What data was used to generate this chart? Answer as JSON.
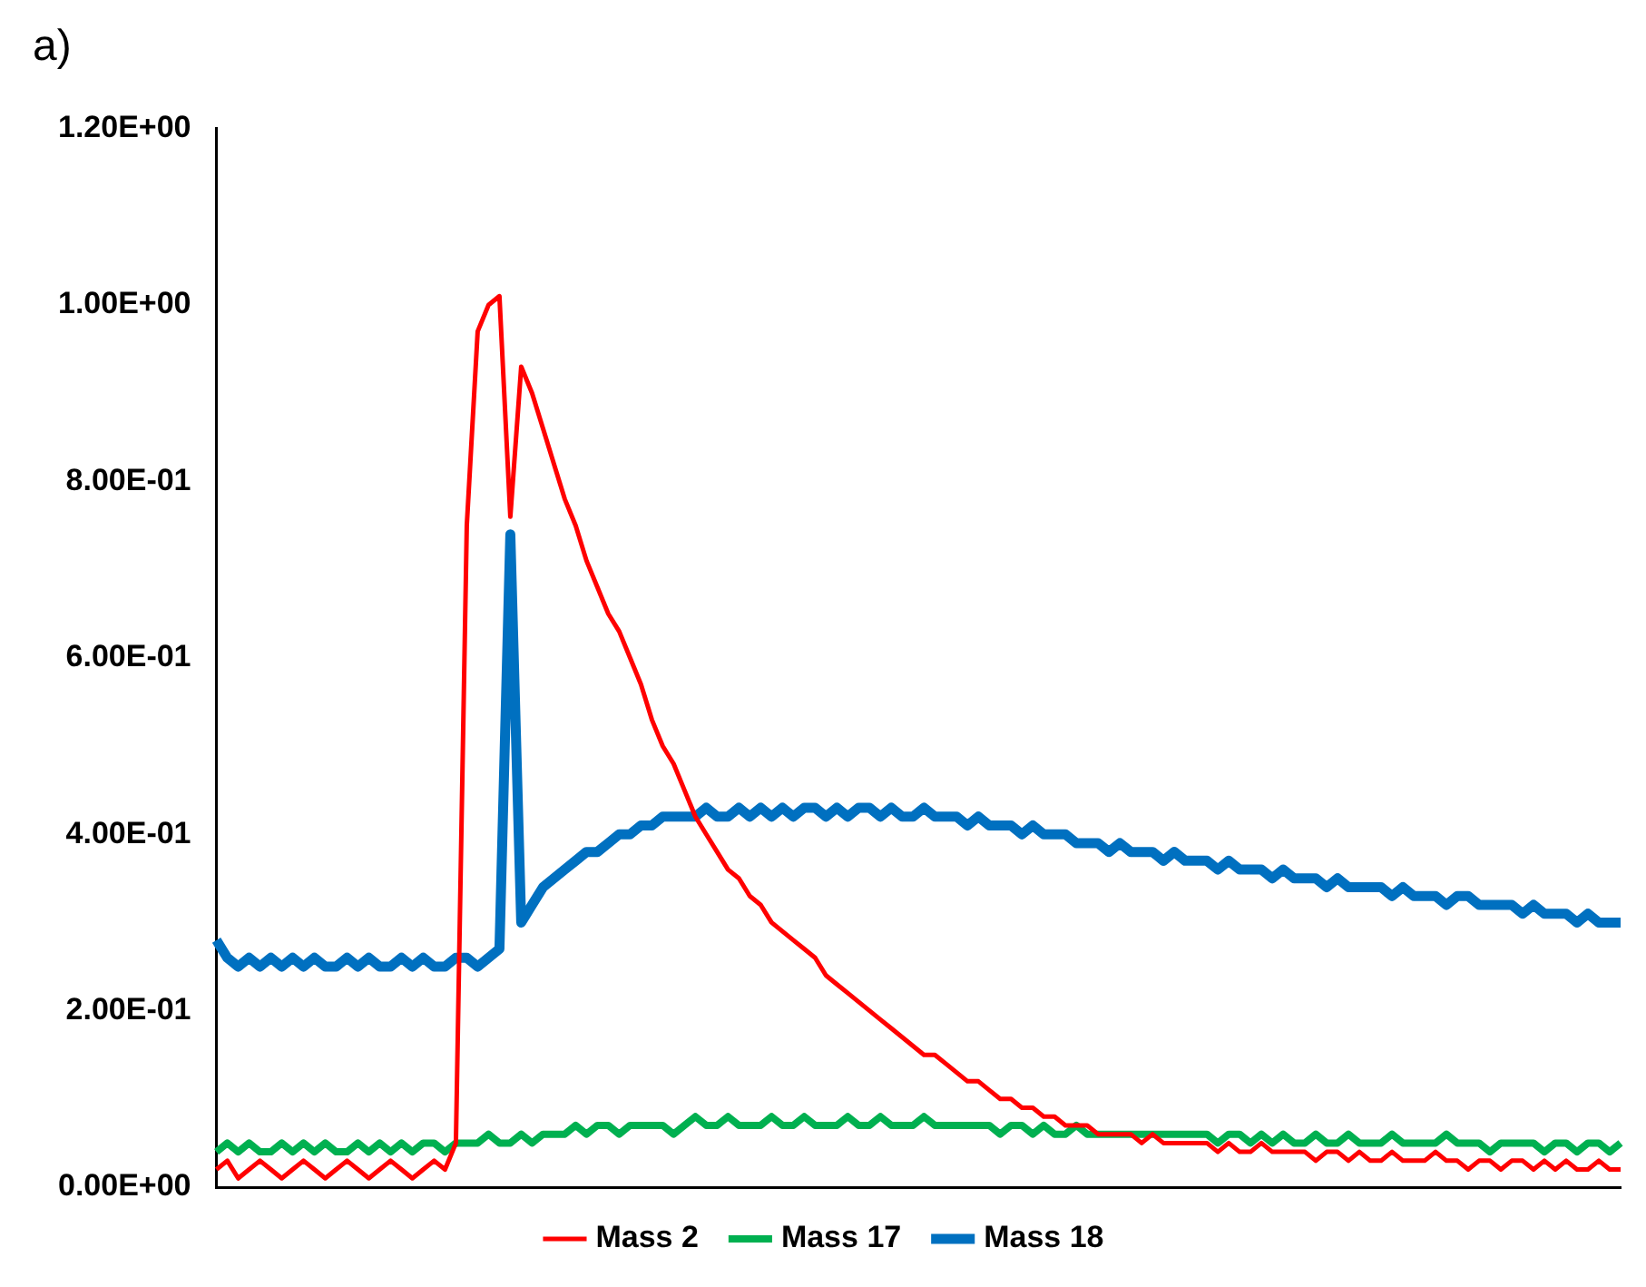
{
  "chart_data": {
    "type": "line",
    "title": "a)",
    "categories": [
      null,
      null,
      null,
      null,
      null,
      null,
      null,
      null,
      null,
      null,
      null,
      null,
      null,
      null,
      null,
      null,
      null,
      null,
      null,
      null,
      null,
      null,
      null,
      null,
      null,
      null,
      null,
      null,
      null,
      null,
      null,
      null,
      null,
      null,
      null,
      null,
      null,
      null,
      null,
      null,
      null,
      null,
      null,
      null,
      null,
      null,
      null,
      null,
      null,
      null,
      null,
      null,
      null,
      null,
      null,
      null,
      null,
      null,
      null,
      null,
      null,
      null,
      null,
      null,
      null,
      null,
      null,
      null,
      null,
      null,
      null,
      null,
      null,
      null,
      null,
      null,
      null,
      null,
      null,
      null,
      null,
      null,
      null,
      null,
      null,
      null,
      null,
      null,
      null,
      null,
      null,
      null,
      null,
      null,
      null,
      null,
      null,
      null,
      null,
      null,
      null,
      null,
      null,
      null,
      null,
      null,
      null,
      null,
      null,
      null,
      null,
      null,
      null,
      null,
      null,
      null,
      null,
      null,
      null,
      null,
      null,
      null,
      null,
      null,
      null,
      null,
      null,
      null,
      null,
      null
    ],
    "series": [
      {
        "name": "Mass 2",
        "color": "#ff0000",
        "values": [
          0.02,
          0.03,
          0.01,
          0.02,
          0.03,
          0.02,
          0.01,
          0.02,
          0.03,
          0.02,
          0.01,
          0.02,
          0.03,
          0.02,
          0.01,
          0.02,
          0.03,
          0.02,
          0.01,
          0.02,
          0.03,
          0.02,
          0.05,
          0.75,
          0.97,
          1.0,
          1.01,
          0.76,
          0.93,
          0.9,
          0.86,
          0.82,
          0.78,
          0.75,
          0.71,
          0.68,
          0.65,
          0.63,
          0.6,
          0.57,
          0.53,
          0.5,
          0.48,
          0.45,
          0.42,
          0.4,
          0.38,
          0.36,
          0.35,
          0.33,
          0.32,
          0.3,
          0.29,
          0.28,
          0.27,
          0.26,
          0.24,
          0.23,
          0.22,
          0.21,
          0.2,
          0.19,
          0.18,
          0.17,
          0.16,
          0.15,
          0.15,
          0.14,
          0.13,
          0.12,
          0.12,
          0.11,
          0.1,
          0.1,
          0.09,
          0.09,
          0.08,
          0.08,
          0.07,
          0.07,
          0.07,
          0.06,
          0.06,
          0.06,
          0.06,
          0.05,
          0.06,
          0.05,
          0.05,
          0.05,
          0.05,
          0.05,
          0.04,
          0.05,
          0.04,
          0.04,
          0.05,
          0.04,
          0.04,
          0.04,
          0.04,
          0.03,
          0.04,
          0.04,
          0.03,
          0.04,
          0.03,
          0.03,
          0.04,
          0.03,
          0.03,
          0.03,
          0.04,
          0.03,
          0.03,
          0.02,
          0.03,
          0.03,
          0.02,
          0.03,
          0.03,
          0.02,
          0.03,
          0.02,
          0.03,
          0.02,
          0.02,
          0.03,
          0.02,
          0.02
        ]
      },
      {
        "name": "Mass 17",
        "color": "#00b050",
        "values": [
          0.04,
          0.05,
          0.04,
          0.05,
          0.04,
          0.04,
          0.05,
          0.04,
          0.05,
          0.04,
          0.05,
          0.04,
          0.04,
          0.05,
          0.04,
          0.05,
          0.04,
          0.05,
          0.04,
          0.05,
          0.05,
          0.04,
          0.05,
          0.05,
          0.05,
          0.06,
          0.05,
          0.05,
          0.06,
          0.05,
          0.06,
          0.06,
          0.06,
          0.07,
          0.06,
          0.07,
          0.07,
          0.06,
          0.07,
          0.07,
          0.07,
          0.07,
          0.06,
          0.07,
          0.08,
          0.07,
          0.07,
          0.08,
          0.07,
          0.07,
          0.07,
          0.08,
          0.07,
          0.07,
          0.08,
          0.07,
          0.07,
          0.07,
          0.08,
          0.07,
          0.07,
          0.08,
          0.07,
          0.07,
          0.07,
          0.08,
          0.07,
          0.07,
          0.07,
          0.07,
          0.07,
          0.07,
          0.06,
          0.07,
          0.07,
          0.06,
          0.07,
          0.06,
          0.06,
          0.07,
          0.06,
          0.06,
          0.06,
          0.06,
          0.06,
          0.06,
          0.06,
          0.06,
          0.06,
          0.06,
          0.06,
          0.06,
          0.05,
          0.06,
          0.06,
          0.05,
          0.06,
          0.05,
          0.06,
          0.05,
          0.05,
          0.06,
          0.05,
          0.05,
          0.06,
          0.05,
          0.05,
          0.05,
          0.06,
          0.05,
          0.05,
          0.05,
          0.05,
          0.06,
          0.05,
          0.05,
          0.05,
          0.04,
          0.05,
          0.05,
          0.05,
          0.05,
          0.04,
          0.05,
          0.05,
          0.04,
          0.05,
          0.05,
          0.04,
          0.05
        ]
      },
      {
        "name": "Mass 18",
        "color": "#0070c0",
        "values": [
          0.28,
          0.26,
          0.25,
          0.26,
          0.25,
          0.26,
          0.25,
          0.26,
          0.25,
          0.26,
          0.25,
          0.25,
          0.26,
          0.25,
          0.26,
          0.25,
          0.25,
          0.26,
          0.25,
          0.26,
          0.25,
          0.25,
          0.26,
          0.26,
          0.25,
          0.26,
          0.27,
          0.74,
          0.3,
          0.32,
          0.34,
          0.35,
          0.36,
          0.37,
          0.38,
          0.38,
          0.39,
          0.4,
          0.4,
          0.41,
          0.41,
          0.42,
          0.42,
          0.42,
          0.42,
          0.43,
          0.42,
          0.42,
          0.43,
          0.42,
          0.43,
          0.42,
          0.43,
          0.42,
          0.43,
          0.43,
          0.42,
          0.43,
          0.42,
          0.43,
          0.43,
          0.42,
          0.43,
          0.42,
          0.42,
          0.43,
          0.42,
          0.42,
          0.42,
          0.41,
          0.42,
          0.41,
          0.41,
          0.41,
          0.4,
          0.41,
          0.4,
          0.4,
          0.4,
          0.39,
          0.39,
          0.39,
          0.38,
          0.39,
          0.38,
          0.38,
          0.38,
          0.37,
          0.38,
          0.37,
          0.37,
          0.37,
          0.36,
          0.37,
          0.36,
          0.36,
          0.36,
          0.35,
          0.36,
          0.35,
          0.35,
          0.35,
          0.34,
          0.35,
          0.34,
          0.34,
          0.34,
          0.34,
          0.33,
          0.34,
          0.33,
          0.33,
          0.33,
          0.32,
          0.33,
          0.33,
          0.32,
          0.32,
          0.32,
          0.32,
          0.31,
          0.32,
          0.31,
          0.31,
          0.31,
          0.3,
          0.31,
          0.3,
          0.3,
          0.3
        ]
      }
    ],
    "ylim": [
      0,
      1.2
    ],
    "yticks": [
      {
        "value": 0,
        "label": "0.00E+00"
      },
      {
        "value": 0.2,
        "label": "2.00E-01"
      },
      {
        "value": 0.4,
        "label": "4.00E-01"
      },
      {
        "value": 0.6,
        "label": "6.00E-01"
      },
      {
        "value": 0.8,
        "label": "8.00E-01"
      },
      {
        "value": 1.0,
        "label": "1.00E+00"
      },
      {
        "value": 1.2,
        "label": "1.20E+00"
      }
    ],
    "tick_labels": "y",
    "legend": "bottom",
    "marker": "none",
    "line_style": "solid"
  }
}
